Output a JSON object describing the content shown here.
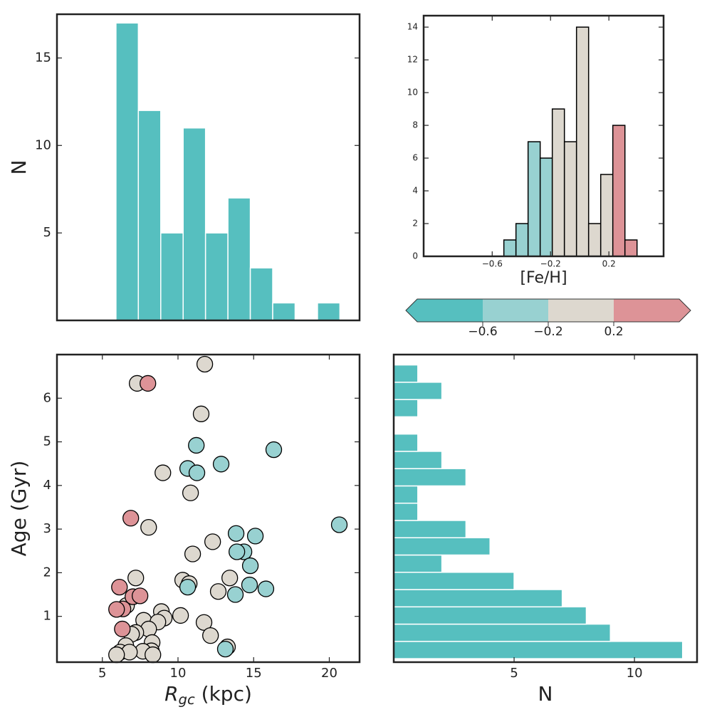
{
  "chart_data": [
    {
      "type": "histogram",
      "orientation": "vertical",
      "ylabel": "N",
      "bins": [
        5.9,
        7.38,
        8.86,
        10.34,
        11.82,
        13.3,
        14.78,
        16.26,
        17.74,
        19.22,
        20.7
      ],
      "values": [
        17,
        12,
        5,
        11,
        5,
        7,
        3,
        1,
        0,
        1
      ],
      "color": "#56bfbf",
      "edgecolor": "#ffffff",
      "xlim": [
        2,
        22
      ],
      "ylim": [
        0,
        17.5
      ],
      "yticks": [
        5,
        10,
        15
      ]
    },
    {
      "type": "histogram",
      "orientation": "vertical",
      "xlabel": "[Fe/H]",
      "bins": [
        -0.52,
        -0.437,
        -0.354,
        -0.271,
        -0.188,
        -0.105,
        -0.022,
        0.061,
        0.144,
        0.227,
        0.31,
        0.393
      ],
      "values": [
        1,
        2,
        7,
        6,
        9,
        7,
        14,
        2,
        5,
        8,
        1
      ],
      "colors": [
        "#98d1d1",
        "#98d1d1",
        "#98d1d1",
        "#98d1d1",
        "#ddd8cf",
        "#ddd8cf",
        "#ddd8cf",
        "#ddd8cf",
        "#ddd8cf",
        "#dd9397",
        "#dd9397"
      ],
      "edgecolor": "#000000",
      "xlim": [
        -1.07,
        0.575
      ],
      "xticks": [
        {
          "value": -0.6,
          "label": "−0.6"
        },
        {
          "value": -0.2,
          "label": "−0.2"
        },
        0.2
      ],
      "ylim": [
        0,
        14.7
      ],
      "yticks": [
        0,
        2,
        4,
        6,
        8,
        10,
        12,
        14
      ]
    },
    {
      "type": "colorbar",
      "extend": "both",
      "colors": [
        "#56bfbf",
        "#98d1d1",
        "#ddd8cf",
        "#dd9397"
      ],
      "ticks": [
        {
          "value": -0.6,
          "label": "−0.6"
        },
        {
          "value": -0.2,
          "label": "−0.2"
        },
        0.2
      ]
    },
    {
      "type": "scatter",
      "ylabel": "Age (Gyr)",
      "xlabel": {
        "symbol": "R",
        "subscript": "gc",
        "unit": " (kpc)"
      },
      "xlim": [
        2,
        22
      ],
      "xticks": [
        5,
        10,
        15,
        20
      ],
      "ylim": [
        -0.05,
        7.0
      ],
      "yticks": [
        1,
        2,
        3,
        4,
        5,
        6
      ],
      "series": [
        {
          "color": "#ddd8cf",
          "x": [
            11.77,
            7.3,
            11.53,
            9.0,
            10.83,
            8.06,
            12.29,
            10.97,
            7.21,
            13.42,
            10.31,
            10.74,
            12.66,
            6.6,
            8.9,
            10.17,
            9.09,
            7.73,
            11.72,
            8.67,
            8.06,
            7.21,
            6.93,
            12.15,
            8.29,
            13.27,
            6.55,
            8.24,
            7.68,
            6.18,
            6.79,
            5.94,
            8.34
          ],
          "values": [
            6.78,
            6.34,
            5.64,
            4.29,
            3.83,
            3.04,
            2.71,
            2.43,
            1.88,
            1.88,
            1.83,
            1.75,
            1.57,
            1.25,
            1.11,
            1.02,
            0.96,
            0.91,
            0.86,
            0.87,
            0.71,
            0.63,
            0.59,
            0.56,
            0.4,
            0.3,
            0.33,
            0.21,
            0.2,
            0.18,
            0.18,
            0.12,
            0.12
          ]
        },
        {
          "color": "#98d1d1",
          "x": [
            11.21,
            16.33,
            12.85,
            10.64,
            11.25,
            20.66,
            13.84,
            15.11,
            14.36,
            13.89,
            14.78,
            10.64,
            13.79,
            14.73,
            15.81,
            13.13
          ],
          "values": [
            4.92,
            4.82,
            4.49,
            4.39,
            4.29,
            3.1,
            2.9,
            2.84,
            2.48,
            2.48,
            2.16,
            1.67,
            1.5,
            1.72,
            1.63,
            0.25
          ]
        },
        {
          "color": "#dd9397",
          "x": [
            8.01,
            6.88,
            6.13,
            7.02,
            7.49,
            6.36,
            5.94,
            6.32
          ],
          "values": [
            6.34,
            3.25,
            1.67,
            1.45,
            1.47,
            1.17,
            1.16,
            0.71
          ]
        }
      ]
    },
    {
      "type": "histogram",
      "orientation": "horizontal",
      "xlabel": "N",
      "bins": [
        0.03,
        0.426,
        0.822,
        1.218,
        1.614,
        2.01,
        2.406,
        2.802,
        3.198,
        3.594,
        3.99,
        4.386,
        4.782,
        5.178,
        5.574,
        5.97,
        6.366,
        6.762
      ],
      "values": [
        12,
        9,
        8,
        7,
        5,
        2,
        4,
        3,
        1,
        1,
        3,
        2,
        1,
        0,
        1,
        2,
        1
      ],
      "color": "#56bfbf",
      "edgecolor": "#ffffff",
      "xlim": [
        0,
        12.6
      ],
      "xticks": [
        5,
        10
      ],
      "ylim": [
        -0.05,
        7.0
      ]
    }
  ]
}
